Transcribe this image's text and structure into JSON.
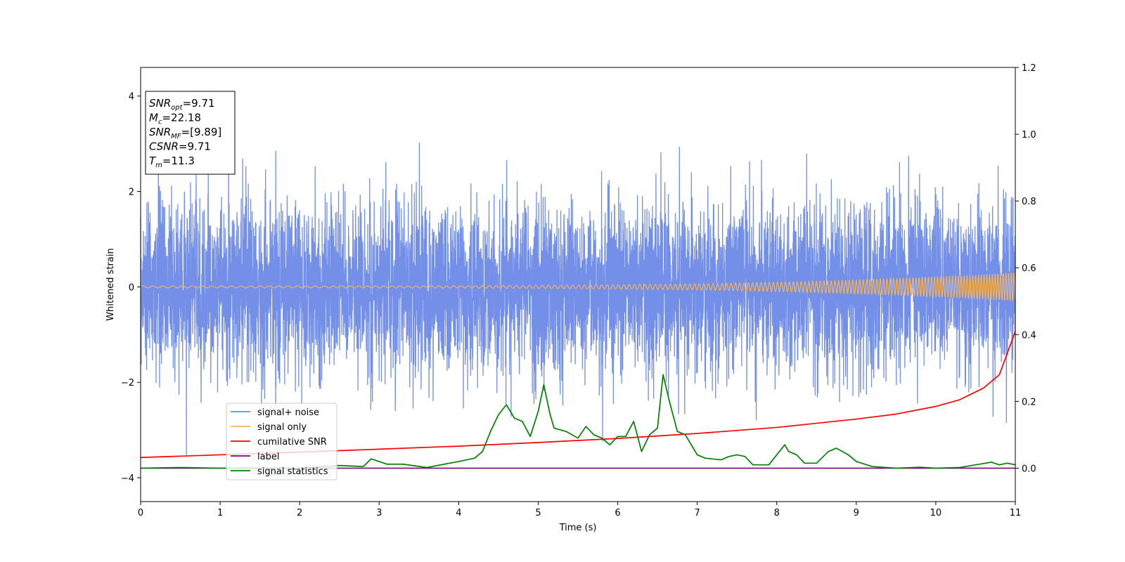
{
  "chart_data": {
    "type": "line",
    "xlabel": "Time (s)",
    "ylabel": "Whitened strain",
    "xlim": [
      0,
      11
    ],
    "ylim_left": [
      -4.5,
      4.6
    ],
    "ylim_right": [
      -0.1,
      1.2
    ],
    "x_ticks": [
      0,
      1,
      2,
      3,
      4,
      5,
      6,
      7,
      8,
      9,
      10,
      11
    ],
    "y_ticks_left": [
      -4,
      -2,
      0,
      2,
      4
    ],
    "y_ticks_right": [
      0.0,
      0.2,
      0.4,
      0.6,
      0.8,
      1.0,
      1.2
    ],
    "info_box": [
      {
        "main": "SNR",
        "sub": "opt",
        "value": "=9.71"
      },
      {
        "main": "M",
        "sub": "c",
        "value": "=22.18"
      },
      {
        "main": "SNR",
        "sub": "MF",
        "value": "=[9.89]"
      },
      {
        "main": "CSNR",
        "sub": "",
        "value": "=9.71"
      },
      {
        "main": "T",
        "sub": "m",
        "value": "=11.3"
      }
    ],
    "legend": {
      "placement": "lower-left",
      "entries": [
        {
          "label": "signal+ noise",
          "color": "#6d89e6"
        },
        {
          "label": "signal only",
          "color": "#f5b25a"
        },
        {
          "label": "cumilative SNR",
          "color": "#ff0000"
        },
        {
          "label": "label",
          "color": "#800080"
        },
        {
          "label": "signal statistics",
          "color": "#008000"
        }
      ]
    },
    "series": [
      {
        "name": "signal+ noise",
        "axis": "left",
        "description": "whitened noise, approx. gaussian, std ~0.9",
        "noise_std": 0.9,
        "color": "#6d89e6"
      },
      {
        "name": "signal only",
        "axis": "left",
        "description": "chirp with amplitude growing toward t=11",
        "amp_start": 0.02,
        "amp_end": 0.3,
        "color": "#f5b25a"
      },
      {
        "name": "cumilative SNR",
        "axis": "right",
        "x": [
          0,
          1,
          2,
          3,
          4,
          5,
          6,
          7,
          8,
          9,
          9.5,
          10,
          10.3,
          10.6,
          10.8,
          11
        ],
        "y": [
          0.032,
          0.04,
          0.048,
          0.057,
          0.066,
          0.077,
          0.089,
          0.104,
          0.122,
          0.147,
          0.162,
          0.185,
          0.205,
          0.24,
          0.28,
          0.41
        ],
        "color": "#ff0000"
      },
      {
        "name": "label",
        "axis": "right",
        "x": [
          0,
          11
        ],
        "y": [
          0.0,
          0.0
        ],
        "color": "#800080"
      },
      {
        "name": "signal statistics",
        "axis": "right",
        "x": [
          0,
          0.5,
          1,
          1.5,
          2,
          2.5,
          2.8,
          2.9,
          3.1,
          3.3,
          3.6,
          4,
          4.2,
          4.3,
          4.4,
          4.5,
          4.6,
          4.7,
          4.8,
          4.9,
          5.0,
          5.07,
          5.15,
          5.2,
          5.35,
          5.5,
          5.6,
          5.7,
          5.8,
          5.9,
          6.0,
          6.1,
          6.2,
          6.3,
          6.4,
          6.5,
          6.57,
          6.65,
          6.75,
          6.85,
          7.0,
          7.1,
          7.3,
          7.4,
          7.5,
          7.6,
          7.7,
          7.9,
          8.0,
          8.1,
          8.15,
          8.25,
          8.35,
          8.5,
          8.65,
          8.75,
          8.9,
          9.0,
          9.2,
          9.5,
          9.8,
          10.0,
          10.3,
          10.5,
          10.7,
          10.8,
          10.9,
          11.0
        ],
        "y": [
          0.0,
          0.002,
          0.0,
          0.0,
          0.0,
          0.008,
          0.005,
          0.028,
          0.012,
          0.012,
          0.002,
          0.02,
          0.03,
          0.05,
          0.11,
          0.16,
          0.19,
          0.15,
          0.14,
          0.095,
          0.17,
          0.25,
          0.16,
          0.12,
          0.11,
          0.09,
          0.125,
          0.1,
          0.09,
          0.07,
          0.095,
          0.095,
          0.14,
          0.05,
          0.1,
          0.12,
          0.28,
          0.2,
          0.11,
          0.1,
          0.04,
          0.03,
          0.025,
          0.035,
          0.04,
          0.035,
          0.01,
          0.01,
          0.04,
          0.07,
          0.05,
          0.04,
          0.015,
          0.015,
          0.05,
          0.06,
          0.04,
          0.02,
          0.005,
          0.0,
          0.003,
          0.0,
          0.002,
          0.01,
          0.018,
          0.01,
          0.015,
          0.01
        ],
        "color": "#008000"
      }
    ]
  }
}
